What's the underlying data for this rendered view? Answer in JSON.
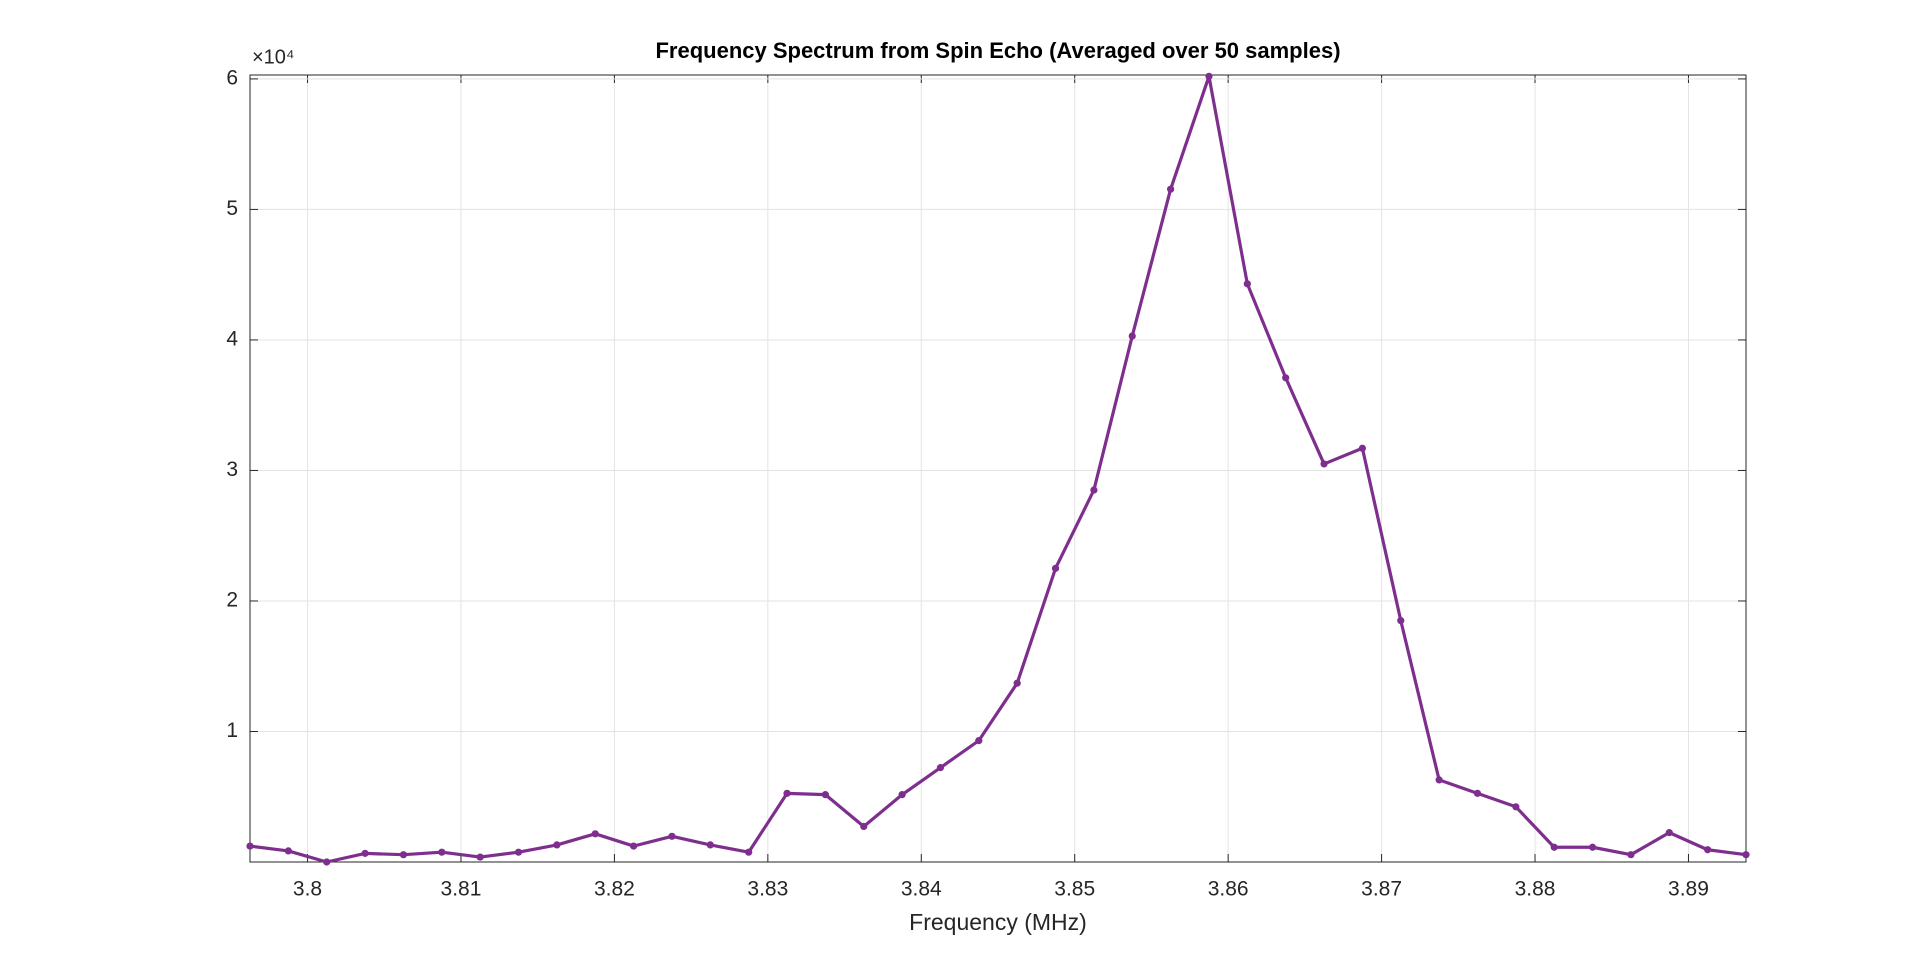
{
  "chart_data": {
    "type": "line",
    "title": "Frequency Spectrum from Spin Echo (Averaged over 50 samples)",
    "x_label": "Frequency (MHz)",
    "y_multiplier": "×10⁴",
    "x": [
      3.79625,
      3.79875,
      3.80125,
      3.80375,
      3.80625,
      3.80875,
      3.81125,
      3.81375,
      3.81625,
      3.81875,
      3.82125,
      3.82375,
      3.82625,
      3.82875,
      3.83125,
      3.83375,
      3.83625,
      3.83875,
      3.84125,
      3.84375,
      3.84625,
      3.84875,
      3.85125,
      3.85375,
      3.85625,
      3.85875,
      3.86125,
      3.86375,
      3.86625,
      3.86875,
      3.87125,
      3.87375,
      3.87625,
      3.87875,
      3.88125,
      3.88375,
      3.88625,
      3.88875,
      3.89125,
      3.89375
    ],
    "series": [
      {
        "color": "#7e2f8e",
        "values": [
          1220,
          850,
          0,
          660,
          560,
          750,
          380,
          750,
          1310,
          2160,
          1220,
          1970,
          1310,
          750,
          5260,
          5160,
          2720,
          5160,
          7230,
          9300,
          13700,
          22500,
          28500,
          40300,
          51550,
          60200,
          44300,
          37100,
          30500,
          31700,
          18500,
          6290,
          5260,
          4230,
          1130,
          1130,
          560,
          2250,
          940,
          560
        ]
      }
    ],
    "xlim": [
      3.79625,
      3.89375
    ],
    "xticks": [
      3.8,
      3.81,
      3.82,
      3.83,
      3.84,
      3.85,
      3.86,
      3.87,
      3.88,
      3.89
    ],
    "ylim": [
      0,
      60300
    ],
    "yticks": [
      {
        "value": 10000,
        "label": "1"
      },
      {
        "value": 20000,
        "label": "2"
      },
      {
        "value": 30000,
        "label": "3"
      },
      {
        "value": 40000,
        "label": "4"
      },
      {
        "value": 50000,
        "label": "5"
      },
      {
        "value": 60000,
        "label": "6"
      }
    ],
    "grid": true
  }
}
